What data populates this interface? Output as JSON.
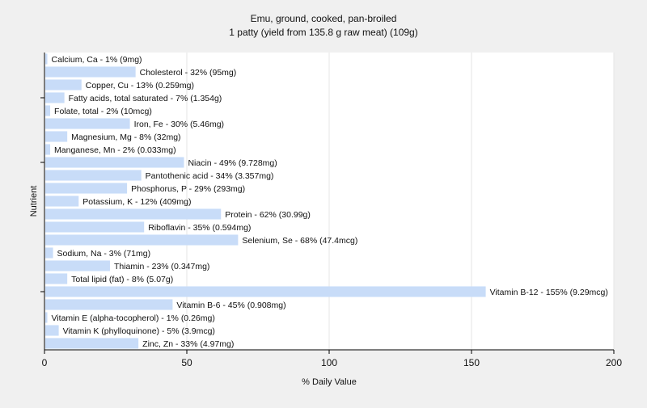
{
  "chart_data": {
    "type": "bar",
    "orientation": "horizontal",
    "title": "Emu, ground, cooked, pan-broiled",
    "subtitle": "1 patty (yield from 135.8 g raw meat) (109g)",
    "xlabel": "% Daily Value",
    "ylabel": "Nutrient",
    "xlim": [
      0,
      200
    ],
    "xticks": [
      0,
      50,
      100,
      150,
      200
    ],
    "grid": true,
    "bar_color": "#c8dcf8",
    "categories": [
      "Calcium, Ca - 1% (9mg)",
      "Cholesterol - 32% (95mg)",
      "Copper, Cu - 13% (0.259mg)",
      "Fatty acids, total saturated - 7% (1.354g)",
      "Folate, total - 2% (10mcg)",
      "Iron, Fe - 30% (5.46mg)",
      "Magnesium, Mg - 8% (32mg)",
      "Manganese, Mn - 2% (0.033mg)",
      "Niacin - 49% (9.728mg)",
      "Pantothenic acid - 34% (3.357mg)",
      "Phosphorus, P - 29% (293mg)",
      "Potassium, K - 12% (409mg)",
      "Protein - 62% (30.99g)",
      "Riboflavin - 35% (0.594mg)",
      "Selenium, Se - 68% (47.4mcg)",
      "Sodium, Na - 3% (71mg)",
      "Thiamin - 23% (0.347mg)",
      "Total lipid (fat) - 8% (5.07g)",
      "Vitamin B-12 - 155% (9.29mcg)",
      "Vitamin B-6 - 45% (0.908mg)",
      "Vitamin E (alpha-tocopherol) - 1% (0.26mg)",
      "Vitamin K (phylloquinone) - 5% (3.9mcg)",
      "Zinc, Zn - 33% (4.97mg)"
    ],
    "values": [
      1,
      32,
      13,
      7,
      2,
      30,
      8,
      2,
      49,
      34,
      29,
      12,
      62,
      35,
      68,
      3,
      23,
      8,
      155,
      45,
      1,
      5,
      33
    ]
  }
}
